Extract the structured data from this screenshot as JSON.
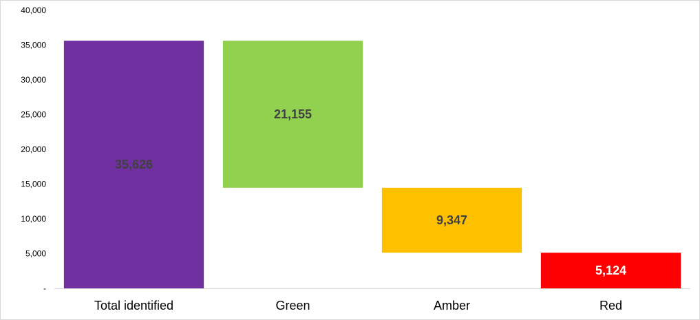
{
  "chart_data": {
    "type": "bar",
    "subtype": "waterfall",
    "title": "",
    "xlabel": "",
    "ylabel": "",
    "ylim": [
      0,
      40000
    ],
    "y_ticks": [
      0,
      5000,
      10000,
      15000,
      20000,
      25000,
      30000,
      35000,
      40000
    ],
    "y_tick_labels": [
      "-",
      "5,000",
      "10,000",
      "15,000",
      "20,000",
      "25,000",
      "30,000",
      "35,000",
      "40,000"
    ],
    "grid": false,
    "legend": "none",
    "categories": [
      "Total identified",
      "Green",
      "Amber",
      "Red"
    ],
    "values": [
      35626,
      21155,
      9347,
      5124
    ],
    "bases": [
      0,
      14471,
      5124,
      0
    ],
    "labels": [
      "35,626",
      "21,155",
      "9,347",
      "5,124"
    ],
    "colors": [
      "#7030a0",
      "#92d050",
      "#ffc000",
      "#ff0000"
    ],
    "label_colors": [
      "#404040",
      "#404040",
      "#404040",
      "#ffffff"
    ]
  }
}
